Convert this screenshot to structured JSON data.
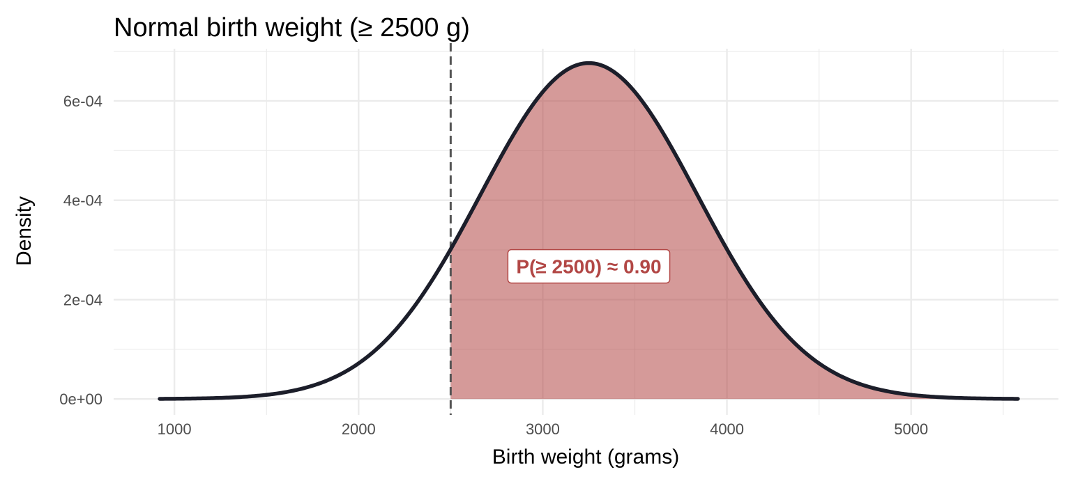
{
  "chart_data": {
    "type": "area",
    "title": "Normal birth weight (≥ 2500 g)",
    "xlabel": "Birth weight (grams)",
    "ylabel": "Density",
    "xlim": [
      670,
      5800
    ],
    "ylim": [
      -3.2e-05,
      0.000705
    ],
    "x_ticks": [
      1000,
      2000,
      3000,
      4000,
      5000
    ],
    "x_minor_ticks": [
      1500,
      2500,
      3500,
      4500,
      5500
    ],
    "y_ticks": [
      0,
      0.0002,
      0.0004,
      0.0006
    ],
    "y_tick_labels": [
      "0e+00",
      "2e-04",
      "4e-04",
      "6e-04"
    ],
    "y_minor_ticks": [
      0.0001,
      0.0003,
      0.0005,
      0.0007
    ],
    "grid": true,
    "distribution": {
      "name": "normal",
      "mean": 3250,
      "sd": 590
    },
    "curve_range": [
      920,
      5580
    ],
    "threshold": 2500,
    "shaded_region": [
      2500,
      5580
    ],
    "annotation": {
      "text": "P(≥ 2500) ≈ 0.90",
      "x": 3250,
      "y": 0.000267
    },
    "colors": {
      "curve": "#1c1e2a",
      "fill": "#b24745",
      "threshold_line": "#555555",
      "annotation_text": "#b24745",
      "grid": "#ebebeb"
    }
  }
}
